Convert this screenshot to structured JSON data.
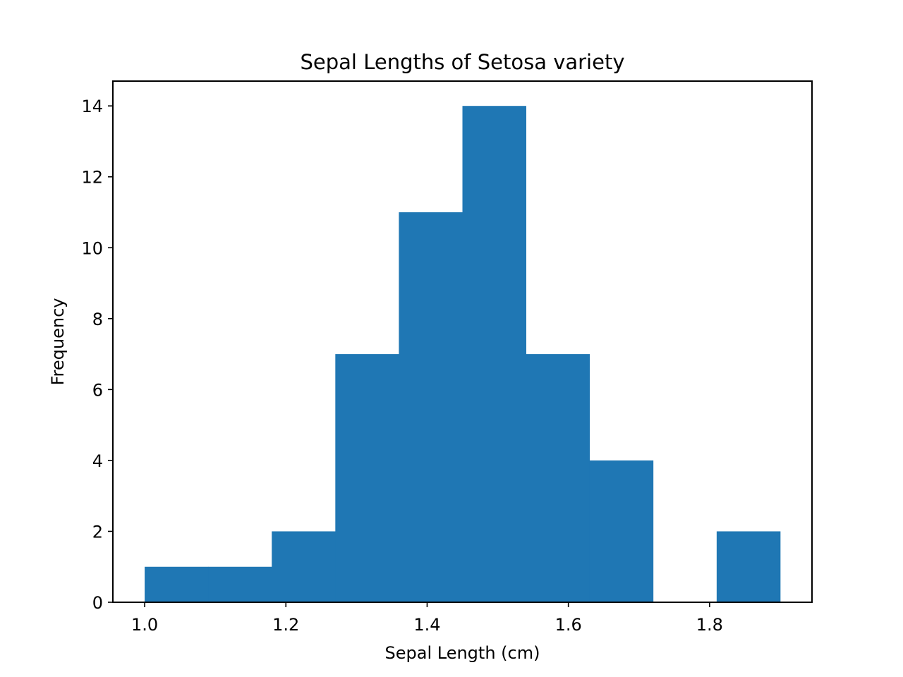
{
  "chart_data": {
    "type": "bar",
    "title": "Sepal Lengths of Setosa variety",
    "xlabel": "Sepal Length (cm)",
    "ylabel": "Frequency",
    "bins": [
      {
        "start": 1.0,
        "end": 1.09,
        "count": 1
      },
      {
        "start": 1.09,
        "end": 1.18,
        "count": 1
      },
      {
        "start": 1.18,
        "end": 1.27,
        "count": 2
      },
      {
        "start": 1.27,
        "end": 1.36,
        "count": 7
      },
      {
        "start": 1.36,
        "end": 1.45,
        "count": 11
      },
      {
        "start": 1.45,
        "end": 1.54,
        "count": 14
      },
      {
        "start": 1.54,
        "end": 1.63,
        "count": 7
      },
      {
        "start": 1.63,
        "end": 1.72,
        "count": 4
      },
      {
        "start": 1.72,
        "end": 1.81,
        "count": 0
      },
      {
        "start": 1.81,
        "end": 1.9,
        "count": 2
      }
    ],
    "xlim": [
      0.955,
      1.945
    ],
    "ylim": [
      0,
      14.7
    ],
    "xticks": [
      1.0,
      1.2,
      1.4,
      1.6,
      1.8
    ],
    "xtick_labels": [
      "1.0",
      "1.2",
      "1.4",
      "1.6",
      "1.8"
    ],
    "yticks": [
      0,
      2,
      4,
      6,
      8,
      10,
      12,
      14
    ],
    "ytick_labels": [
      "0",
      "2",
      "4",
      "6",
      "8",
      "10",
      "12",
      "14"
    ],
    "grid": false,
    "bar_color": "#1f77b4"
  }
}
